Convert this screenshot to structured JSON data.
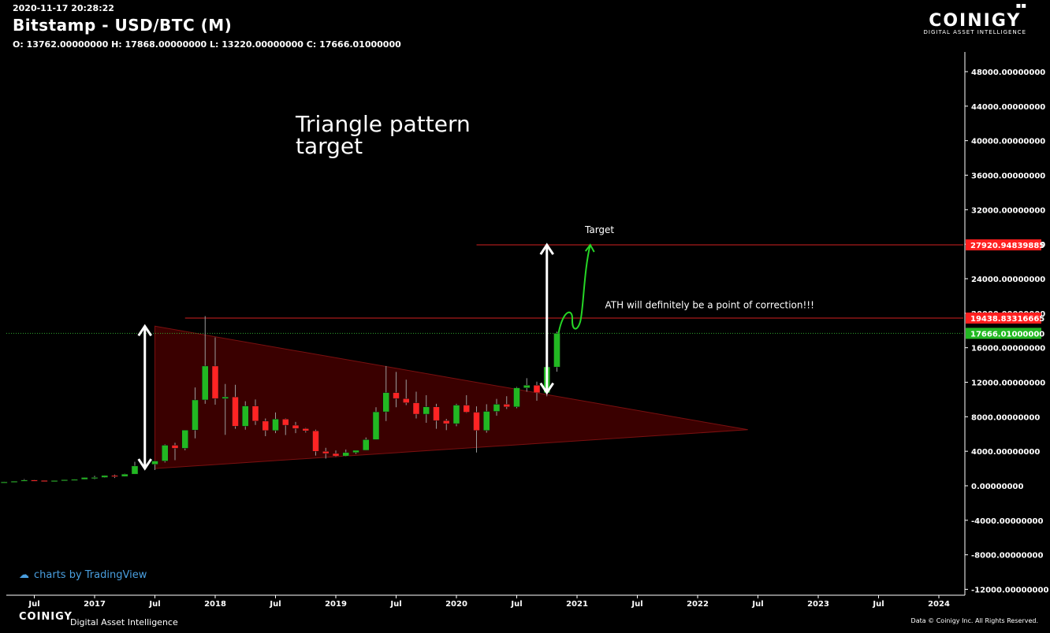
{
  "header": {
    "timestamp": "2020-11-17 20:28:22",
    "title": "Bitstamp - USD/BTC (M)",
    "ohlc": "O: 13762.00000000 H: 17868.00000000 L: 13220.00000000 C: 17666.01000000"
  },
  "brand": {
    "name": "COINIGY",
    "tagline": "DIGITAL ASSET INTELLIGENCE",
    "footer_name": "COINIGY",
    "footer_tagline": "Digital Asset Intelligence",
    "copyright": "Data © Coinigy Inc.  All Rights Reserved."
  },
  "annotation": "Triangle pattern\ntarget",
  "tradingview_credit": "charts by TradingView",
  "colors": {
    "background": "#000000",
    "up": "#22b822",
    "down": "#ff2424",
    "line": "#d21f1f",
    "triangle_fill": "#3a0000",
    "current_line": "#2fa82f",
    "curve": "#26d626"
  },
  "chart_data": {
    "type": "candlestick",
    "ylim": [
      -12000,
      50000
    ],
    "y_ticks": [
      -12000,
      -8000,
      -4000,
      0,
      4000,
      8000,
      12000,
      16000,
      20000,
      24000,
      28000,
      32000,
      36000,
      40000,
      44000,
      48000
    ],
    "y_tick_labels": [
      "-12000.00000000",
      "-8000.00000000",
      "-4000.00000000",
      "0.00000000",
      "4000.00000000",
      "8000.00000000",
      "12000.00000000",
      "16000.00000000",
      "20000.00000000",
      "24000.00000000",
      "28000.00000000",
      "32000.00000000",
      "36000.00000000",
      "40000.00000000",
      "44000.00000000",
      "48000.00000000"
    ],
    "x_ticks": [
      {
        "date": "2016-07",
        "label": "Jul"
      },
      {
        "date": "2017-01",
        "label": "2017"
      },
      {
        "date": "2017-07",
        "label": "Jul"
      },
      {
        "date": "2018-01",
        "label": "2018"
      },
      {
        "date": "2018-07",
        "label": "Jul"
      },
      {
        "date": "2019-01",
        "label": "2019"
      },
      {
        "date": "2019-07",
        "label": "Jul"
      },
      {
        "date": "2020-01",
        "label": "2020"
      },
      {
        "date": "2020-07",
        "label": "Jul"
      },
      {
        "date": "2021-01",
        "label": "2021"
      },
      {
        "date": "2021-07",
        "label": "Jul"
      },
      {
        "date": "2022-01",
        "label": "2022"
      },
      {
        "date": "2022-07",
        "label": "Jul"
      },
      {
        "date": "2023-01",
        "label": "2023"
      },
      {
        "date": "2023-07",
        "label": "Jul"
      },
      {
        "date": "2024-01",
        "label": "2024"
      }
    ],
    "candles": [
      {
        "date": "2016-01",
        "o": 430,
        "h": 460,
        "l": 360,
        "c": 370
      },
      {
        "date": "2016-02",
        "o": 370,
        "h": 440,
        "l": 360,
        "c": 435
      },
      {
        "date": "2016-03",
        "o": 435,
        "h": 440,
        "l": 405,
        "c": 415
      },
      {
        "date": "2016-04",
        "o": 415,
        "h": 465,
        "l": 410,
        "c": 450
      },
      {
        "date": "2016-05",
        "o": 450,
        "h": 550,
        "l": 440,
        "c": 530
      },
      {
        "date": "2016-06",
        "o": 530,
        "h": 780,
        "l": 520,
        "c": 670
      },
      {
        "date": "2016-07",
        "o": 670,
        "h": 700,
        "l": 590,
        "c": 620
      },
      {
        "date": "2016-08",
        "o": 620,
        "h": 630,
        "l": 520,
        "c": 575
      },
      {
        "date": "2016-09",
        "o": 575,
        "h": 615,
        "l": 570,
        "c": 608
      },
      {
        "date": "2016-10",
        "o": 608,
        "h": 720,
        "l": 605,
        "c": 700
      },
      {
        "date": "2016-11",
        "o": 700,
        "h": 750,
        "l": 690,
        "c": 740
      },
      {
        "date": "2016-12",
        "o": 740,
        "h": 970,
        "l": 740,
        "c": 960
      },
      {
        "date": "2017-01",
        "o": 960,
        "h": 1150,
        "l": 750,
        "c": 965
      },
      {
        "date": "2017-02",
        "o": 965,
        "h": 1200,
        "l": 930,
        "c": 1190
      },
      {
        "date": "2017-03",
        "o": 1190,
        "h": 1300,
        "l": 900,
        "c": 1080
      },
      {
        "date": "2017-04",
        "o": 1080,
        "h": 1400,
        "l": 1060,
        "c": 1350
      },
      {
        "date": "2017-05",
        "o": 1350,
        "h": 2780,
        "l": 1350,
        "c": 2300
      },
      {
        "date": "2017-06",
        "o": 2300,
        "h": 2980,
        "l": 2100,
        "c": 2480
      },
      {
        "date": "2017-07",
        "o": 2480,
        "h": 2900,
        "l": 1830,
        "c": 2870
      },
      {
        "date": "2017-08",
        "o": 2870,
        "h": 4800,
        "l": 2700,
        "c": 4700
      },
      {
        "date": "2017-09",
        "o": 4700,
        "h": 4980,
        "l": 2970,
        "c": 4340
      },
      {
        "date": "2017-10",
        "o": 4340,
        "h": 6450,
        "l": 4110,
        "c": 6450
      },
      {
        "date": "2017-11",
        "o": 6450,
        "h": 11400,
        "l": 5500,
        "c": 9950
      },
      {
        "date": "2017-12",
        "o": 9950,
        "h": 19666,
        "l": 9500,
        "c": 13880
      },
      {
        "date": "2018-01",
        "o": 13880,
        "h": 17200,
        "l": 9400,
        "c": 10100
      },
      {
        "date": "2018-02",
        "o": 10100,
        "h": 11800,
        "l": 5900,
        "c": 10300
      },
      {
        "date": "2018-03",
        "o": 10300,
        "h": 11700,
        "l": 6600,
        "c": 6900
      },
      {
        "date": "2018-04",
        "o": 6900,
        "h": 9800,
        "l": 6500,
        "c": 9250
      },
      {
        "date": "2018-05",
        "o": 9250,
        "h": 10000,
        "l": 7050,
        "c": 7500
      },
      {
        "date": "2018-06",
        "o": 7500,
        "h": 7800,
        "l": 5750,
        "c": 6400
      },
      {
        "date": "2018-07",
        "o": 6400,
        "h": 8500,
        "l": 6100,
        "c": 7730
      },
      {
        "date": "2018-08",
        "o": 7730,
        "h": 7800,
        "l": 5880,
        "c": 7020
      },
      {
        "date": "2018-09",
        "o": 7020,
        "h": 7400,
        "l": 6100,
        "c": 6630
      },
      {
        "date": "2018-10",
        "o": 6630,
        "h": 6700,
        "l": 6170,
        "c": 6370
      },
      {
        "date": "2018-11",
        "o": 6370,
        "h": 6500,
        "l": 3500,
        "c": 3990
      },
      {
        "date": "2018-12",
        "o": 3990,
        "h": 4400,
        "l": 3150,
        "c": 3740
      },
      {
        "date": "2019-01",
        "o": 3740,
        "h": 4100,
        "l": 3350,
        "c": 3450
      },
      {
        "date": "2019-02",
        "o": 3450,
        "h": 4200,
        "l": 3400,
        "c": 3850
      },
      {
        "date": "2019-03",
        "o": 3850,
        "h": 4100,
        "l": 3700,
        "c": 4110
      },
      {
        "date": "2019-04",
        "o": 4110,
        "h": 5600,
        "l": 4100,
        "c": 5350
      },
      {
        "date": "2019-05",
        "o": 5350,
        "h": 9100,
        "l": 5350,
        "c": 8570
      },
      {
        "date": "2019-06",
        "o": 8570,
        "h": 13880,
        "l": 7500,
        "c": 10800
      },
      {
        "date": "2019-07",
        "o": 10800,
        "h": 13200,
        "l": 9100,
        "c": 10100
      },
      {
        "date": "2019-08",
        "o": 10100,
        "h": 12300,
        "l": 9350,
        "c": 9620
      },
      {
        "date": "2019-09",
        "o": 9620,
        "h": 10900,
        "l": 7800,
        "c": 8300
      },
      {
        "date": "2019-10",
        "o": 8300,
        "h": 10500,
        "l": 7300,
        "c": 9150
      },
      {
        "date": "2019-11",
        "o": 9150,
        "h": 9500,
        "l": 6600,
        "c": 7550
      },
      {
        "date": "2019-12",
        "o": 7550,
        "h": 7750,
        "l": 6450,
        "c": 7200
      },
      {
        "date": "2020-01",
        "o": 7200,
        "h": 9500,
        "l": 6900,
        "c": 9350
      },
      {
        "date": "2020-02",
        "o": 9350,
        "h": 10500,
        "l": 8450,
        "c": 8530
      },
      {
        "date": "2020-03",
        "o": 8530,
        "h": 9200,
        "l": 3850,
        "c": 6410
      },
      {
        "date": "2020-04",
        "o": 6410,
        "h": 9450,
        "l": 6150,
        "c": 8620
      },
      {
        "date": "2020-05",
        "o": 8620,
        "h": 10070,
        "l": 8120,
        "c": 9450
      },
      {
        "date": "2020-06",
        "o": 9450,
        "h": 10380,
        "l": 8900,
        "c": 9140
      },
      {
        "date": "2020-07",
        "o": 9140,
        "h": 11450,
        "l": 8990,
        "c": 11350
      },
      {
        "date": "2020-08",
        "o": 11350,
        "h": 12470,
        "l": 10900,
        "c": 11650
      },
      {
        "date": "2020-09",
        "o": 11650,
        "h": 12070,
        "l": 9850,
        "c": 10780
      },
      {
        "date": "2020-10",
        "o": 10780,
        "h": 14100,
        "l": 10370,
        "c": 13780
      },
      {
        "date": "2020-11",
        "o": 13762,
        "h": 17868,
        "l": 13220,
        "c": 17666.01
      }
    ],
    "triangle": {
      "apex": {
        "date": "2022-06",
        "y": 6500
      },
      "upper_start": {
        "date": "2017-07",
        "y": 18500
      },
      "lower_start": {
        "date": "2017-07",
        "y": 2000
      }
    },
    "target_line": {
      "y": 27920.94839885,
      "from": "2020-03"
    },
    "ath_line": {
      "y": 19438.83316665,
      "from": "2017-10"
    },
    "current_line": {
      "y": 17666.01
    },
    "height_arrow": {
      "date": "2017-06",
      "from": 2000,
      "to": 18500
    },
    "projection_arrow": {
      "date": "2020-10",
      "from": 10800,
      "to": 27920.94839885
    },
    "price_labels": [
      {
        "y": 27920.94839885,
        "text": "27920.94839885",
        "color": "#ff1f1f"
      },
      {
        "y": 19438.83316665,
        "text": "19438.83316665",
        "color": "#ff1f1f"
      },
      {
        "y": 17666.01,
        "text": "17666.01000000",
        "color": "#22b822"
      }
    ],
    "texts": [
      {
        "text": "Target",
        "date": "2021-01",
        "y": 29300
      },
      {
        "text": "ATH will definitely be a point of correction!!!",
        "date": "2021-03",
        "y": 20600
      }
    ]
  }
}
